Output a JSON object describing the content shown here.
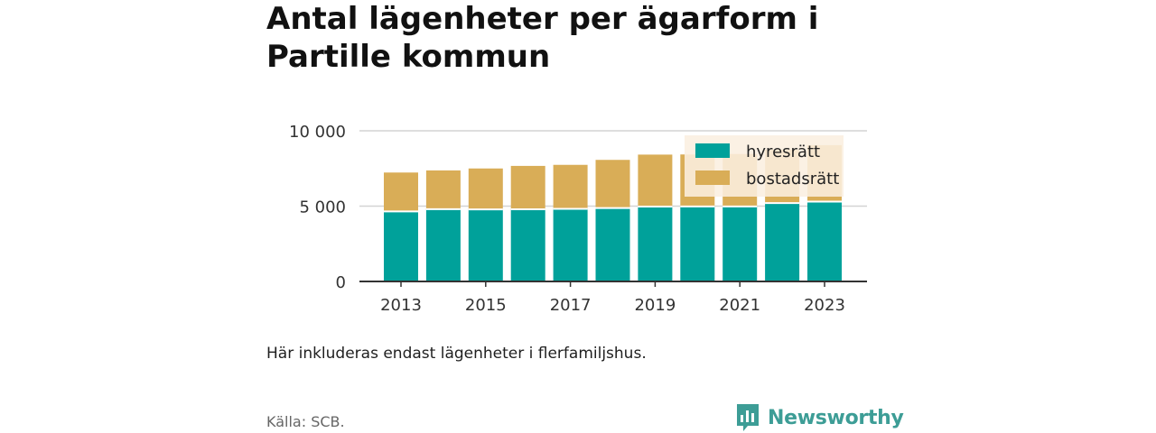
{
  "title": "Antal lägenheter per ägarform i Partille kommun",
  "note": "Här inkluderas endast lägenheter i flerfamiljshus.",
  "source": "Källa: SCB.",
  "brand": "Newsworthy",
  "colors": {
    "hyresratt": "#00a19a",
    "bostadsratt": "#d9ad57",
    "legend_bg": "#faefe0",
    "grid": "#d4d4d4",
    "axis": "#333333",
    "brand": "#3d9d96"
  },
  "chart_data": {
    "type": "bar",
    "stacked": true,
    "categories": [
      "2013",
      "2014",
      "2015",
      "2016",
      "2017",
      "2018",
      "2019",
      "2020",
      "2021",
      "2022",
      "2023"
    ],
    "x_tick_labels": [
      "2013",
      "2015",
      "2017",
      "2019",
      "2021",
      "2023"
    ],
    "series": [
      {
        "name": "hyresrätt",
        "values": [
          4650,
          4800,
          4780,
          4790,
          4820,
          4870,
          4970,
          4980,
          4980,
          5200,
          5300
        ]
      },
      {
        "name": "bostadsrätt",
        "values": [
          2580,
          2570,
          2720,
          2880,
          2920,
          3200,
          3450,
          3450,
          3480,
          3550,
          3750
        ]
      }
    ],
    "y_ticks": [
      0,
      5000,
      10000
    ],
    "y_tick_labels": [
      "0",
      "5 000",
      "10 000"
    ],
    "ylim": [
      0,
      10000
    ],
    "grid": true,
    "legend": "top-right"
  }
}
